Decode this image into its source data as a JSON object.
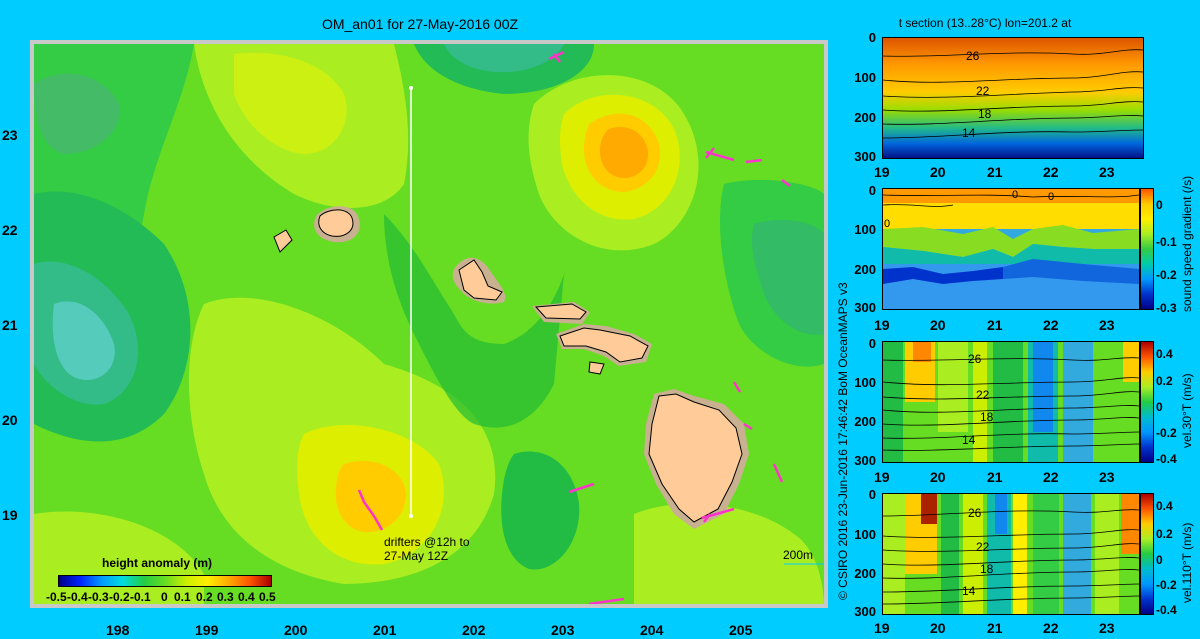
{
  "title": "OM_an01 for 27-May-2016 00Z",
  "map": {
    "y_ticks": [
      "23",
      "22",
      "21",
      "20",
      "19"
    ],
    "x_ticks": [
      "198",
      "199",
      "200",
      "201",
      "202",
      "203",
      "204",
      "205"
    ],
    "drifter_note_line1": "drifters @12h to",
    "drifter_note_line2": "27-May 12Z",
    "scale_label": "200m",
    "colorbar_title": "height anomaly  (m)",
    "colorbar_ticks": [
      "-0.5",
      "-0.4",
      "-0.3",
      "-0.2",
      "-0.1",
      "0",
      "0.1",
      "0.2",
      "0.3",
      "0.4",
      "0.5"
    ]
  },
  "credit": "© CSIRO 2016  23-Jun-2016 17:46:42 BoM OceanMAPS v3",
  "panels": {
    "temperature": {
      "title": "t section (13..28°C) lon=201.2 at",
      "y_ticks": [
        "0",
        "100",
        "200",
        "300"
      ],
      "x_ticks": [
        "19",
        "20",
        "21",
        "22",
        "23"
      ],
      "contour_labels": [
        "26",
        "22",
        "18",
        "14"
      ]
    },
    "sound_speed": {
      "y_ticks": [
        "0",
        "100",
        "200",
        "300"
      ],
      "x_ticks": [
        "19",
        "20",
        "21",
        "22",
        "23"
      ],
      "contour_labels": [
        "0",
        "0",
        "0"
      ],
      "colorbar_ticks": [
        "0",
        "-0.1",
        "-0.2",
        "-0.3"
      ],
      "colorbar_label": "sound speed gradient (/s)"
    },
    "vel30": {
      "y_ticks": [
        "0",
        "100",
        "200",
        "300"
      ],
      "x_ticks": [
        "19",
        "20",
        "21",
        "22",
        "23"
      ],
      "contour_labels": [
        "26",
        "22",
        "18",
        "14"
      ],
      "colorbar_ticks": [
        "0.4",
        "0.2",
        "0",
        "-0.2",
        "-0.4"
      ],
      "colorbar_label": "vel.30°T (m/s)"
    },
    "vel110": {
      "y_ticks": [
        "0",
        "100",
        "200",
        "300"
      ],
      "x_ticks": [
        "19",
        "20",
        "21",
        "22",
        "23"
      ],
      "contour_labels": [
        "26",
        "22",
        "18",
        "14"
      ],
      "colorbar_ticks": [
        "0.4",
        "0.2",
        "0",
        "-0.2",
        "-0.4"
      ],
      "colorbar_label": "vel.110°T (m/s)"
    }
  },
  "colors": {
    "background": "#00ccff",
    "land": "#ffcc99",
    "shelf": "#c8b090",
    "drifter": "#ff33cc",
    "section_line": "#ffffff"
  }
}
